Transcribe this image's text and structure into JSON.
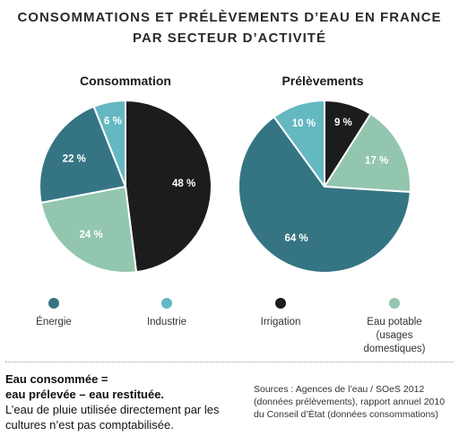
{
  "title_line1": "CONSOMMATIONS ET PRÉLÈVEMENTS D’EAU EN FRANCE",
  "title_line2": "PAR SECTEUR D’ACTIVITÉ",
  "colors": {
    "energie": "#357583",
    "industrie": "#64b8c2",
    "irrigation": "#1c1c1c",
    "eau_potable": "#92c6ae"
  },
  "chart_data": [
    {
      "type": "pie",
      "title": "Consommation",
      "slices": [
        {
          "key": "irrigation",
          "value": 48,
          "label": "48 %"
        },
        {
          "key": "eau_potable",
          "value": 24,
          "label": "24 %"
        },
        {
          "key": "energie",
          "value": 22,
          "label": "22 %"
        },
        {
          "key": "industrie",
          "value": 6,
          "label": "6 %"
        }
      ]
    },
    {
      "type": "pie",
      "title": "Prélèvements",
      "slices": [
        {
          "key": "irrigation",
          "value": 9,
          "label": "9 %"
        },
        {
          "key": "eau_potable",
          "value": 17,
          "label": "17 %"
        },
        {
          "key": "energie",
          "value": 64,
          "label": "64 %"
        },
        {
          "key": "industrie",
          "value": 10,
          "label": "10 %"
        }
      ]
    }
  ],
  "legend": [
    {
      "key": "energie",
      "label": "Énergie"
    },
    {
      "key": "industrie",
      "label": "Industrie"
    },
    {
      "key": "irrigation",
      "label": "Irrigation"
    },
    {
      "key": "eau_potable",
      "label": "Eau potable (usages domestiques)"
    }
  ],
  "note": {
    "line1": "Eau consommée =",
    "line2": "eau prélevée – eau restituée.",
    "line3": "L’eau de pluie utilisée directement par les cultures n’est pas comptabilisée."
  },
  "sources": "Sources : Agences de l’eau / SOeS 2012 (données prélèvements), rapport annuel 2010 du Conseil d’État (données consommations)"
}
